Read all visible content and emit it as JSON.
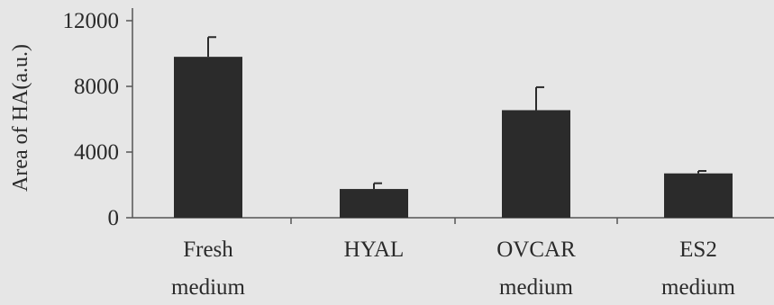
{
  "chart_data": {
    "type": "bar",
    "title": "",
    "xlabel": "",
    "ylabel": "Area of HA(a.u.)",
    "categories": [
      [
        "Fresh",
        "medium"
      ],
      [
        "HYAL"
      ],
      [
        "OVCAR",
        "medium"
      ],
      [
        "ES2",
        "medium"
      ]
    ],
    "values": [
      9800,
      1750,
      6550,
      2700
    ],
    "errors": [
      1200,
      350,
      1400,
      150
    ],
    "ylim": [
      0,
      12000
    ],
    "yticks": [
      0,
      4000,
      8000,
      12000
    ],
    "ytick_labels": [
      "0",
      "4000",
      "8000",
      "12000"
    ],
    "grid": false,
    "legend": "none",
    "bar_color": "#2b2b2b",
    "axis_color": "#555555",
    "background_color": "#e6e6e6"
  }
}
